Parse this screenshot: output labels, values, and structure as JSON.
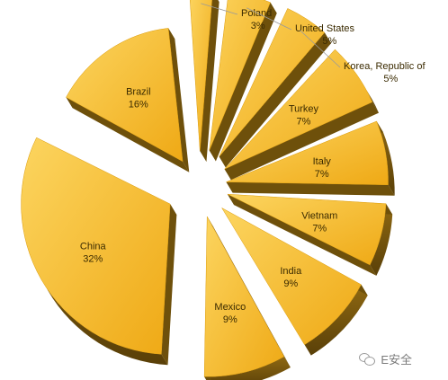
{
  "chart_data": {
    "type": "pie",
    "slices": [
      {
        "label": "Brazil",
        "pct_label": "16%",
        "value": 16
      },
      {
        "label": "Poland",
        "pct_label": "3%",
        "value": 3
      },
      {
        "label": "United States",
        "pct_label": "5%",
        "value": 5
      },
      {
        "label": "Korea, Republic of",
        "pct_label": "5%",
        "value": 5
      },
      {
        "label": "Turkey",
        "pct_label": "7%",
        "value": 7
      },
      {
        "label": "Italy",
        "pct_label": "7%",
        "value": 7
      },
      {
        "label": "Vietnam",
        "pct_label": "7%",
        "value": 7
      },
      {
        "label": "India",
        "pct_label": "9%",
        "value": 9
      },
      {
        "label": "Mexico",
        "pct_label": "9%",
        "value": 9
      },
      {
        "label": "China",
        "pct_label": "32%",
        "value": 32
      }
    ],
    "colors": {
      "top": "#F4B41E",
      "top_light": "#FBD35A",
      "side": "#8A6410",
      "side_dark": "#5E4308"
    },
    "style": "3d-exploded"
  },
  "watermark": {
    "text": "E安全",
    "icon": "wechat-icon"
  }
}
